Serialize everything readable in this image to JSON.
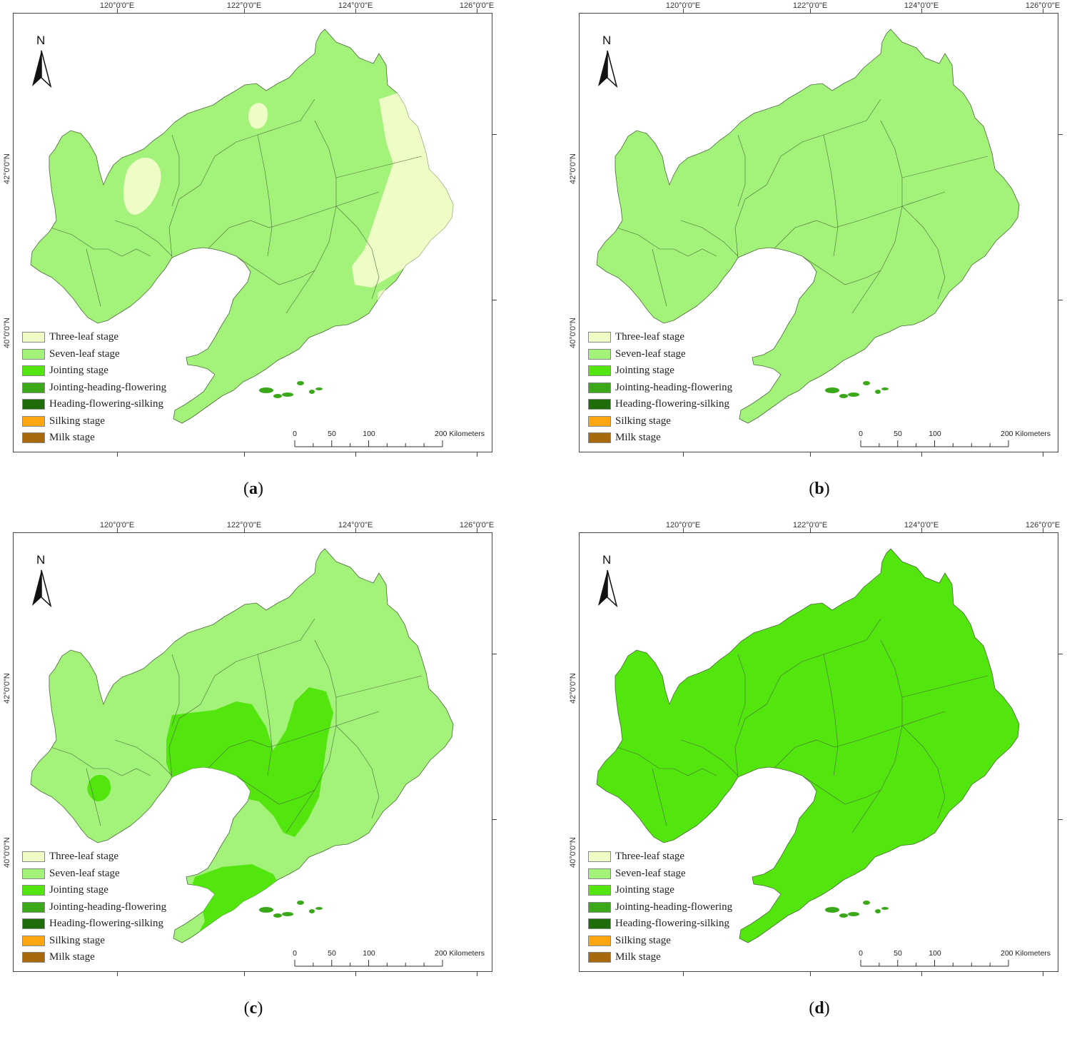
{
  "graticule": {
    "lon_labels": [
      "120°0'0\"E",
      "122°0'0\"E",
      "124°0'0\"E",
      "126°0'0\"E"
    ],
    "lat_labels": [
      "42°0'0\"N",
      "40°0'0\"N"
    ]
  },
  "north_arrow": {
    "letter": "N",
    "icon": "north-arrow-icon"
  },
  "legend": [
    {
      "label": "Three-leaf stage",
      "color": "#eefcc6"
    },
    {
      "label": "Seven-leaf stage",
      "color": "#a3f27a"
    },
    {
      "label": "Jointing stage",
      "color": "#52e50e"
    },
    {
      "label": "Jointing-heading-flowering",
      "color": "#3aa818"
    },
    {
      "label": "Heading-flowering-silking",
      "color": "#206c0a"
    },
    {
      "label": "Silking stage",
      "color": "#fda60f"
    },
    {
      "label": "Milk stage",
      "color": "#a8690c"
    }
  ],
  "scale_bar": {
    "ticks": [
      "0",
      "50",
      "100",
      "200 Kilometers"
    ]
  },
  "panels": [
    {
      "caption": "a",
      "base_stage": "Seven-leaf stage",
      "patch_stage": "Three-leaf stage"
    },
    {
      "caption": "b",
      "base_stage": "Seven-leaf stage",
      "patch_stage": ""
    },
    {
      "caption": "c",
      "base_stage": "Seven-leaf stage",
      "patch_stage": "Jointing stage"
    },
    {
      "caption": "d",
      "base_stage": "Jointing stage",
      "patch_stage": ""
    }
  ]
}
